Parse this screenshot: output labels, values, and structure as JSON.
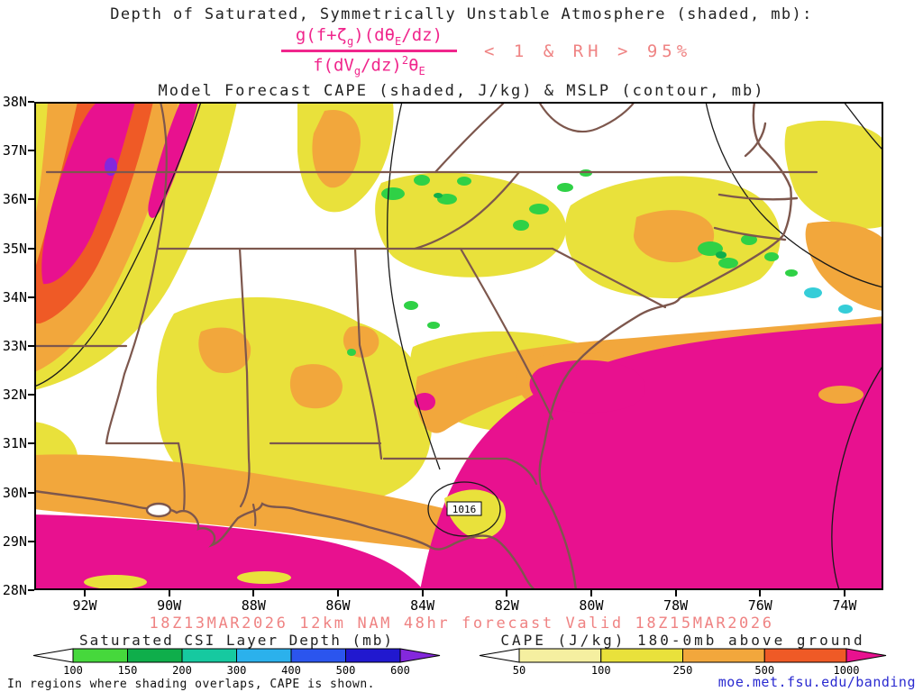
{
  "header": {
    "title1": "Depth of Saturated, Symmetrically Unstable Atmosphere (shaded, mb):",
    "title2": "Model Forecast CAPE (shaded, J/kg) & MSLP (contour, mb)",
    "formula": {
      "num_1": "g(f+ζ",
      "num_sub1": "g",
      "num_2": ")(dθ",
      "num_sub2": "E",
      "num_3": "/dz)",
      "den_1": "f(dV",
      "den_sub1": "g",
      "den_2": "/dz)",
      "den_sup": "2",
      "den_3": "θ",
      "den_sub2": "E",
      "condition": "< 1 & RH > 95%"
    }
  },
  "map": {
    "lat_labels": [
      "38N",
      "37N",
      "36N",
      "35N",
      "34N",
      "33N",
      "32N",
      "31N",
      "30N",
      "29N",
      "28N"
    ],
    "lon_labels": [
      "92W",
      "90W",
      "88W",
      "86W",
      "84W",
      "82W",
      "80W",
      "78W",
      "76W",
      "74W"
    ],
    "pressure_label": "1016"
  },
  "legends": {
    "csi": {
      "title": "Saturated CSI Layer Depth (mb)",
      "tick_labels": [
        "100",
        "150",
        "200",
        "300",
        "400",
        "500",
        "600"
      ],
      "colors": [
        "#ffffff",
        "#46d83c",
        "#0fae4b",
        "#16c9a0",
        "#2bb1ec",
        "#2b55ee",
        "#2118cf",
        "#8428dc"
      ]
    },
    "cape": {
      "title": "CAPE (J/kg) 180-0mb above ground",
      "tick_labels": [
        "50",
        "100",
        "250",
        "500",
        "1000"
      ],
      "colors": [
        "#ffffff",
        "#f5efa0",
        "#e9e13b",
        "#f2a73c",
        "#ef5a26",
        "#e8118f"
      ]
    }
  },
  "footer": {
    "valid_line": "18Z13MAR2026 12km NAM 48hr forecast Valid 18Z15MAR2026",
    "note": "In regions where shading overlaps, CAPE is shown.",
    "link": "moe.met.fsu.edu/banding"
  },
  "colors": {
    "yellow": "#e9e13b",
    "pale_yellow": "#f5efa0",
    "orange": "#f2a73c",
    "red_orange": "#ef5a26",
    "magenta": "#e8118f",
    "purple": "#8428dc",
    "green": "#2fd146",
    "green_dark": "#0fae4b",
    "cyan": "#35cdd8",
    "state_border": "#7d574d",
    "contour": "#1a1a1a",
    "formula_pink": "#f0268c",
    "salmon": "#ef8383",
    "link_blue": "#2a2ad0"
  }
}
